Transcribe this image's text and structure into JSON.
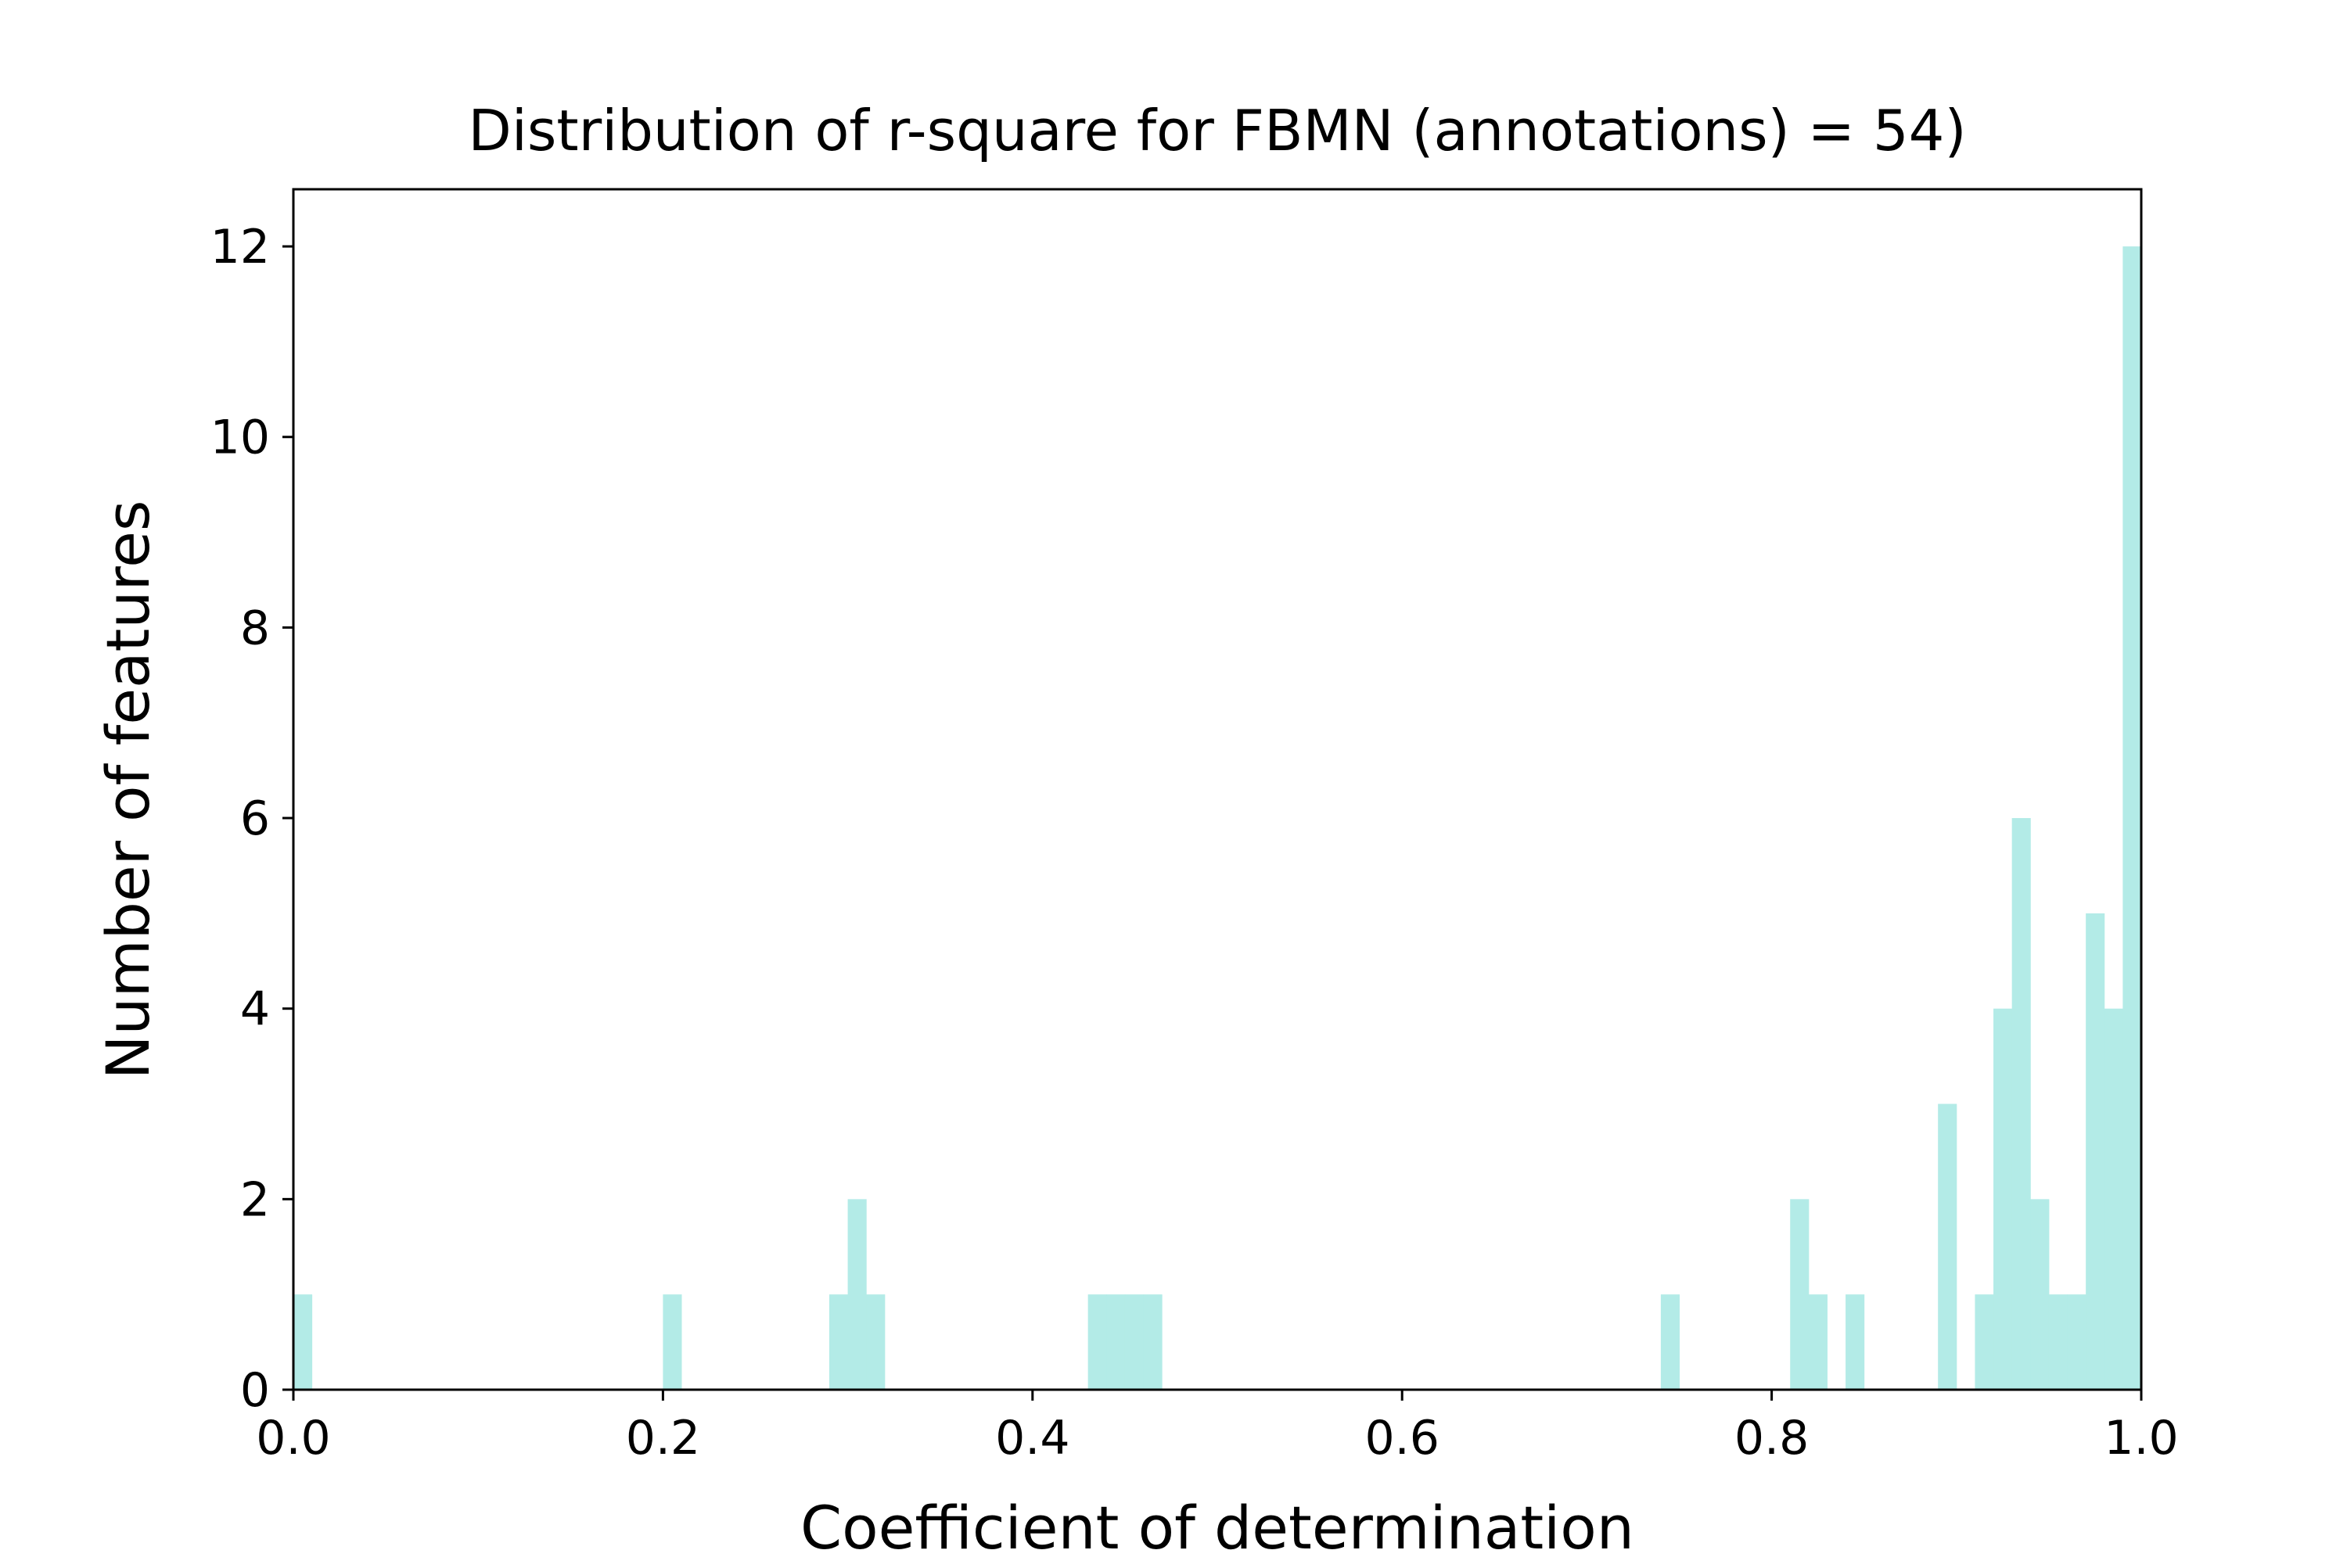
{
  "chart_data": {
    "type": "bar",
    "title": "Distribution of r-square for FBMN (annotations) = 54)",
    "xlabel": "Coefficient of determination",
    "ylabel": "Number of features",
    "xlim": [
      0.0,
      1.0
    ],
    "ylim": [
      0,
      12.6
    ],
    "xticks": [
      "0.0",
      "0.2",
      "0.4",
      "0.6",
      "0.8",
      "1.0"
    ],
    "yticks": [
      "0",
      "2",
      "4",
      "6",
      "8",
      "10",
      "12"
    ],
    "grid": false,
    "bin_width": 0.01,
    "bar_color": "#b3ebe7",
    "bins": [
      {
        "x": 0.0,
        "count": 1
      },
      {
        "x": 0.2,
        "count": 1
      },
      {
        "x": 0.29,
        "count": 1
      },
      {
        "x": 0.3,
        "count": 2
      },
      {
        "x": 0.31,
        "count": 1
      },
      {
        "x": 0.43,
        "count": 1
      },
      {
        "x": 0.44,
        "count": 1
      },
      {
        "x": 0.45,
        "count": 1
      },
      {
        "x": 0.46,
        "count": 1
      },
      {
        "x": 0.74,
        "count": 1
      },
      {
        "x": 0.81,
        "count": 2
      },
      {
        "x": 0.82,
        "count": 1
      },
      {
        "x": 0.84,
        "count": 1
      },
      {
        "x": 0.89,
        "count": 3
      },
      {
        "x": 0.91,
        "count": 1
      },
      {
        "x": 0.92,
        "count": 4
      },
      {
        "x": 0.93,
        "count": 6
      },
      {
        "x": 0.94,
        "count": 2
      },
      {
        "x": 0.95,
        "count": 1
      },
      {
        "x": 0.96,
        "count": 1
      },
      {
        "x": 0.97,
        "count": 5
      },
      {
        "x": 0.98,
        "count": 4
      },
      {
        "x": 0.99,
        "count": 12
      }
    ]
  }
}
